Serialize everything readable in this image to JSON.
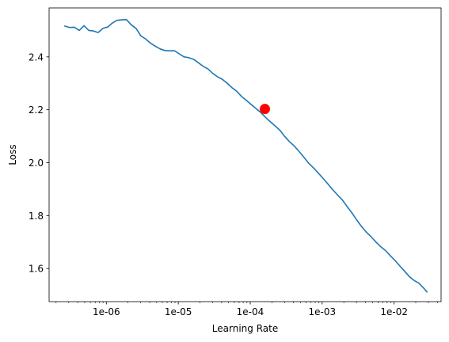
{
  "chart_data": {
    "type": "line",
    "title": "",
    "xlabel": "Learning Rate",
    "ylabel": "Loss",
    "x_scale": "log",
    "xlim": [
      1.6e-07,
      0.045
    ],
    "ylim": [
      1.475,
      2.585
    ],
    "grid": false,
    "legend": "none",
    "x_ticks": [
      {
        "value": 1e-06,
        "label": "1e-06"
      },
      {
        "value": 1e-05,
        "label": "1e-05"
      },
      {
        "value": 0.0001,
        "label": "1e-04"
      },
      {
        "value": 0.001,
        "label": "1e-03"
      },
      {
        "value": 0.01,
        "label": "1e-02"
      }
    ],
    "y_ticks": [
      {
        "value": 1.6,
        "label": "1.6"
      },
      {
        "value": 1.8,
        "label": "1.8"
      },
      {
        "value": 2.0,
        "label": "2.0"
      },
      {
        "value": 2.2,
        "label": "2.2"
      },
      {
        "value": 2.4,
        "label": "2.4"
      }
    ],
    "series": [
      {
        "color": "#1f77b4",
        "x": [
          2.6e-07,
          3.1e-07,
          3.6e-07,
          4.2e-07,
          4.9e-07,
          5.7e-07,
          6.6e-07,
          7.7e-07,
          9e-07,
          1.05e-06,
          1.2e-06,
          1.4e-06,
          1.65e-06,
          1.9e-06,
          2.2e-06,
          2.6e-06,
          3e-06,
          3.5e-06,
          4.1e-06,
          4.8e-06,
          5.6e-06,
          6.5e-06,
          7.6e-06,
          8.9e-06,
          1.05e-05,
          1.2e-05,
          1.4e-05,
          1.65e-05,
          1.9e-05,
          2.2e-05,
          2.6e-05,
          3e-05,
          3.5e-05,
          4.1e-05,
          4.8e-05,
          5.6e-05,
          6.5e-05,
          7.6e-05,
          8.9e-05,
          0.000105,
          0.00012,
          0.00014,
          0.000165,
          0.00019,
          0.00022,
          0.00026,
          0.0003,
          0.00035,
          0.00041,
          0.00048,
          0.00056,
          0.00065,
          0.00076,
          0.00089,
          0.00105,
          0.0012,
          0.0014,
          0.00165,
          0.0019,
          0.0022,
          0.0026,
          0.003,
          0.0035,
          0.0041,
          0.0048,
          0.0056,
          0.0065,
          0.0076,
          0.0089,
          0.0105,
          0.012,
          0.014,
          0.0165,
          0.019,
          0.022,
          0.026,
          0.029
        ],
        "y": [
          2.517,
          2.511,
          2.512,
          2.5,
          2.518,
          2.5,
          2.498,
          2.492,
          2.508,
          2.513,
          2.527,
          2.538,
          2.54,
          2.541,
          2.522,
          2.507,
          2.48,
          2.468,
          2.452,
          2.44,
          2.43,
          2.424,
          2.423,
          2.423,
          2.41,
          2.4,
          2.397,
          2.39,
          2.378,
          2.365,
          2.354,
          2.338,
          2.325,
          2.315,
          2.3,
          2.283,
          2.27,
          2.25,
          2.235,
          2.218,
          2.205,
          2.19,
          2.17,
          2.155,
          2.14,
          2.122,
          2.1,
          2.08,
          2.063,
          2.042,
          2.02,
          1.998,
          1.98,
          1.96,
          1.938,
          1.92,
          1.898,
          1.877,
          1.86,
          1.836,
          1.81,
          1.785,
          1.76,
          1.738,
          1.72,
          1.7,
          1.683,
          1.668,
          1.648,
          1.628,
          1.61,
          1.59,
          1.568,
          1.555,
          1.545,
          1.525,
          1.51
        ]
      }
    ],
    "highlight": {
      "x": 0.00016,
      "y": 2.203,
      "color": "#ff0000"
    }
  }
}
